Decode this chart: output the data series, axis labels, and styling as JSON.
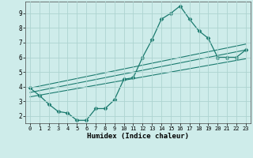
{
  "xlabel": "Humidex (Indice chaleur)",
  "background_color": "#ceecea",
  "grid_color": "#add4d0",
  "line_color": "#1a7a6e",
  "x_ticks": [
    0,
    1,
    2,
    3,
    4,
    5,
    6,
    7,
    8,
    9,
    10,
    11,
    12,
    13,
    14,
    15,
    16,
    17,
    18,
    19,
    20,
    21,
    22,
    23
  ],
  "y_ticks": [
    2,
    3,
    4,
    5,
    6,
    7,
    8,
    9
  ],
  "xlim": [
    -0.5,
    23.5
  ],
  "ylim": [
    1.5,
    9.8
  ],
  "line1_x": [
    0,
    1,
    2,
    3,
    4,
    5,
    6,
    7,
    8,
    9,
    10,
    11,
    12,
    13,
    14,
    15,
    16,
    17,
    18,
    19,
    20,
    21,
    22,
    23
  ],
  "line1_y": [
    3.9,
    3.4,
    2.8,
    2.3,
    2.2,
    1.7,
    1.7,
    2.5,
    2.5,
    3.1,
    4.5,
    4.6,
    6.0,
    7.2,
    8.6,
    9.0,
    9.5,
    8.6,
    7.8,
    7.3,
    6.0,
    6.0,
    6.0,
    6.5
  ],
  "line2_x": [
    0,
    23
  ],
  "line2_y": [
    3.6,
    6.5
  ],
  "line3_x": [
    0,
    23
  ],
  "line3_y": [
    3.3,
    5.9
  ],
  "line4_x": [
    0,
    23
  ],
  "line4_y": [
    3.9,
    6.9
  ]
}
